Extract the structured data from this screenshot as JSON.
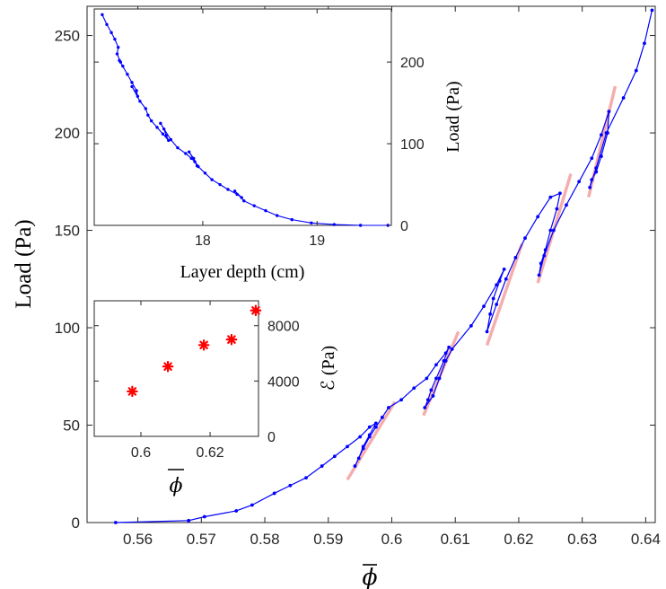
{
  "chart_data": [
    {
      "type": "line",
      "title": "",
      "xlabel": "ϕ",
      "ylabel": "Load (Pa)",
      "xlim": [
        0.552,
        0.6415
      ],
      "ylim": [
        0,
        265
      ],
      "xticks": [
        "0.56",
        "0.57",
        "0.58",
        "0.59",
        "0.6",
        "0.61",
        "0.62",
        "0.63",
        "0.64"
      ],
      "yticks": [
        "0",
        "50",
        "100",
        "150",
        "200",
        "250"
      ],
      "grid": false,
      "line_color": "#0000ff",
      "fit_color": "#f4a0a0",
      "series": [
        {
          "x": [
            0.5565,
            0.568,
            0.5705,
            0.5755,
            0.578,
            0.5815,
            0.584,
            0.5865,
            0.589,
            0.591,
            0.593,
            0.595,
            0.5965,
            0.5975,
            0.5965,
            0.5955,
            0.5948,
            0.5942,
            0.5955,
            0.5965,
            0.5975,
            0.5985,
            0.5995,
            0.6015,
            0.6035,
            0.6055,
            0.607,
            0.6085,
            0.609,
            0.6082,
            0.607,
            0.6062,
            0.6057,
            0.6052,
            0.6065,
            0.6075,
            0.6085,
            0.6095,
            0.6125,
            0.6145,
            0.6165,
            0.6177,
            0.617,
            0.616,
            0.6155,
            0.615,
            0.6165,
            0.618,
            0.6195,
            0.621,
            0.623,
            0.625,
            0.6265,
            0.626,
            0.625,
            0.6242,
            0.6235,
            0.6232,
            0.624,
            0.6255,
            0.6275,
            0.6295,
            0.6315,
            0.633,
            0.6342,
            0.634,
            0.633,
            0.6322,
            0.6315,
            0.6312,
            0.6322,
            0.6338,
            0.6365,
            0.6385,
            0.6398,
            0.641
          ],
          "y": [
            0,
            1,
            3,
            6,
            9,
            15,
            19,
            23,
            29,
            34,
            39,
            44,
            49,
            51,
            45,
            39,
            33,
            29,
            38,
            44,
            49,
            54,
            59,
            63,
            69,
            74,
            81,
            87,
            90,
            83,
            74,
            68,
            63,
            59,
            65,
            74,
            83,
            89,
            101,
            111,
            122,
            130,
            124,
            115,
            107,
            98,
            112,
            125,
            136,
            146,
            157,
            167,
            169,
            161,
            150,
            140,
            133,
            127,
            137,
            150,
            163,
            175,
            187,
            199,
            211,
            200,
            188,
            180,
            176,
            172,
            182,
            200,
            218,
            232,
            246,
            263
          ]
        }
      ],
      "fit_segments": [
        {
          "x": [
            0.593,
            0.6005
          ],
          "y": [
            22,
            62
          ]
        },
        {
          "x": [
            0.605,
            0.6105
          ],
          "y": [
            55,
            98
          ]
        },
        {
          "x": [
            0.615,
            0.6205
          ],
          "y": [
            91,
            143
          ]
        },
        {
          "x": [
            0.623,
            0.6282
          ],
          "y": [
            123,
            179
          ]
        },
        {
          "x": [
            0.631,
            0.6352
          ],
          "y": [
            167,
            224
          ]
        }
      ]
    },
    {
      "type": "line",
      "title": "",
      "xlabel": "Layer depth (cm)",
      "ylabel": "Load (Pa)",
      "y_axis_side": "right",
      "xlim": [
        17.05,
        19.65
      ],
      "ylim": [
        0,
        265
      ],
      "xticks": [
        "18",
        "19"
      ],
      "yticks": [
        "0",
        "100",
        "200"
      ],
      "grid": false,
      "line_color": "#0000ff",
      "series": [
        {
          "x": [
            17.12,
            17.16,
            17.2,
            17.23,
            17.26,
            17.25,
            17.28,
            17.3,
            17.27,
            17.34,
            17.38,
            17.42,
            17.43,
            17.38,
            17.45,
            17.5,
            17.52,
            17.55,
            17.6,
            17.65,
            17.7,
            17.68,
            17.66,
            17.63,
            17.72,
            17.78,
            17.85,
            17.9,
            17.93,
            17.95,
            17.92,
            17.88,
            17.96,
            18.02,
            18.08,
            18.15,
            18.22,
            18.3,
            18.34,
            18.28,
            18.36,
            18.45,
            18.55,
            18.65,
            18.78,
            18.95,
            19.15,
            19.38,
            19.62
          ],
          "y": [
            258,
            246,
            236,
            228,
            218,
            210,
            200,
            195,
            202,
            185,
            175,
            165,
            158,
            170,
            152,
            143,
            135,
            128,
            120,
            112,
            104,
            110,
            118,
            125,
            105,
            95,
            88,
            82,
            78,
            73,
            82,
            90,
            72,
            64,
            56,
            50,
            44,
            38,
            34,
            42,
            30,
            24,
            18,
            12,
            7,
            3,
            1,
            0,
            0
          ]
        }
      ]
    },
    {
      "type": "scatter",
      "title": "",
      "xlabel": "ϕ",
      "ylabel": "ℰ (Pa)",
      "y_axis_side": "right",
      "xlim": [
        0.5865,
        0.634
      ],
      "ylim": [
        0,
        9800
      ],
      "xticks": [
        "0.6",
        "0.62"
      ],
      "yticks": [
        "0",
        "4000",
        "8000"
      ],
      "grid": false,
      "marker": "asterisk",
      "marker_color": "#ff0000",
      "series": [
        {
          "x": [
            0.5975,
            0.6078,
            0.6182,
            0.6262,
            0.6332
          ],
          "y": [
            3250,
            5050,
            6600,
            7000,
            9100
          ]
        }
      ]
    }
  ]
}
